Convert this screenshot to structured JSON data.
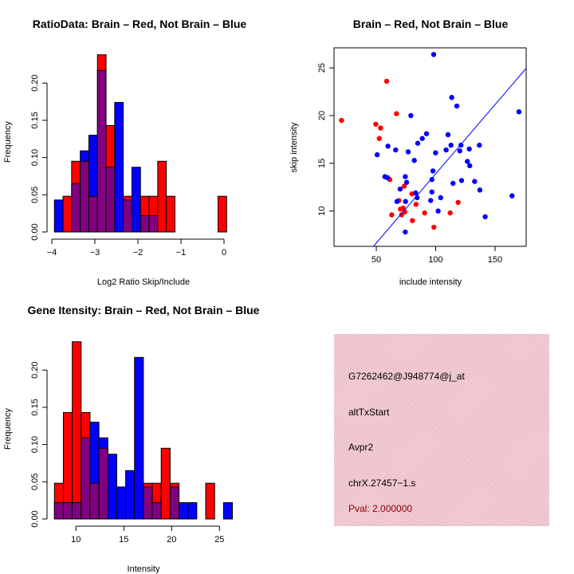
{
  "chart_data": [
    {
      "type": "bar",
      "subtype": "overlaid-histogram",
      "title": "RatioData: Brain – Red, Not Brain – Blue",
      "xlabel": "Log2 Ratio Skip/Include",
      "ylabel": "Frequency",
      "bin_start": -3.94,
      "bin_width": 0.2,
      "xticks": [
        -4,
        -3,
        -2,
        -1,
        0
      ],
      "xtick_labels": [
        "−4",
        "−3",
        "−2",
        "−1",
        "0"
      ],
      "yticks": [
        0,
        0.05,
        0.1,
        0.15,
        0.2
      ],
      "ytick_labels": [
        "0.00",
        "0.05",
        "0.10",
        "0.15",
        "0.20"
      ],
      "series": [
        {
          "name": "Brain",
          "color": "#ff0000",
          "values": [
            0,
            0.048,
            0.095,
            0.095,
            0.048,
            0.238,
            0.143,
            0,
            0.048,
            0,
            0.048,
            0.048,
            0.095,
            0.048,
            0,
            0,
            0,
            0,
            0,
            0.048
          ]
        },
        {
          "name": "Not Brain",
          "color": "#0000ff",
          "values": [
            0.043,
            0,
            0.065,
            0.109,
            0.13,
            0.217,
            0.087,
            0.174,
            0.043,
            0.087,
            0.022,
            0.022,
            0,
            0,
            0,
            0,
            0,
            0,
            0,
            0
          ]
        }
      ],
      "overlap_color": "#800080"
    },
    {
      "type": "scatter",
      "title": "Brain – Red, Not Brain – Blue",
      "xlabel": "include intensity",
      "ylabel": "skip intensity",
      "xlim": [
        14.4,
        176.2
      ],
      "ylim": [
        6.3,
        27.1
      ],
      "xticks": [
        50,
        100,
        150
      ],
      "yticks": [
        10,
        15,
        20,
        25
      ],
      "fit_line": {
        "intercept": -0.6,
        "slope": 0.145,
        "color": "#0000ff"
      },
      "series": [
        {
          "name": "Brain",
          "color": "#ff0000",
          "points": [
            [
              58.7,
              23.6
            ],
            [
              67.0,
              20.2
            ],
            [
              20.7,
              19.5
            ],
            [
              49.6,
              19.1
            ],
            [
              53.6,
              18.7
            ],
            [
              52.5,
              17.6
            ],
            [
              61.4,
              13.3
            ],
            [
              73.5,
              12.6
            ],
            [
              80.0,
              11.8
            ],
            [
              69.0,
              11.1
            ],
            [
              83.4,
              10.7
            ],
            [
              118.9,
              10.9
            ],
            [
              70.3,
              10.2
            ],
            [
              72.6,
              10.3
            ],
            [
              74.0,
              9.9
            ],
            [
              71.3,
              9.6
            ],
            [
              63.0,
              9.6
            ],
            [
              90.7,
              9.8
            ],
            [
              112.2,
              9.8
            ],
            [
              80.4,
              9.0
            ],
            [
              98.5,
              8.3
            ]
          ]
        },
        {
          "name": "Not Brain",
          "color": "#0000ff",
          "points": [
            [
              98.3,
              26.4
            ],
            [
              113.5,
              21.9
            ],
            [
              117.8,
              21.0
            ],
            [
              170.1,
              20.4
            ],
            [
              79.1,
              20.0
            ],
            [
              92.3,
              18.1
            ],
            [
              110.4,
              18.0
            ],
            [
              88.7,
              17.6
            ],
            [
              84.9,
              17.1
            ],
            [
              59.8,
              16.8
            ],
            [
              112.9,
              16.9
            ],
            [
              121.3,
              16.9
            ],
            [
              136.8,
              16.9
            ],
            [
              66.3,
              16.4
            ],
            [
              108.8,
              16.4
            ],
            [
              128.3,
              16.5
            ],
            [
              120.3,
              16.3
            ],
            [
              50.7,
              15.9
            ],
            [
              76.8,
              16.2
            ],
            [
              99.9,
              16.1
            ],
            [
              82.0,
              15.3
            ],
            [
              126.7,
              15.2
            ],
            [
              128.7,
              14.75
            ],
            [
              97.7,
              14.2
            ],
            [
              57.2,
              13.6
            ],
            [
              59.4,
              13.5
            ],
            [
              74.4,
              13.6
            ],
            [
              96.8,
              13.3
            ],
            [
              75.5,
              13.0
            ],
            [
              114.6,
              12.9
            ],
            [
              121.8,
              13.2
            ],
            [
              132.8,
              13.1
            ],
            [
              70.1,
              12.3
            ],
            [
              137.2,
              12.2
            ],
            [
              83.1,
              11.9
            ],
            [
              96.8,
              12.0
            ],
            [
              84.4,
              11.4
            ],
            [
              104.2,
              11.4
            ],
            [
              164.3,
              11.6
            ],
            [
              67.4,
              11.0
            ],
            [
              74.6,
              11.0
            ],
            [
              95.8,
              11.1
            ],
            [
              102.1,
              10.0
            ],
            [
              141.7,
              9.4
            ],
            [
              74.4,
              7.8
            ]
          ]
        }
      ]
    },
    {
      "type": "bar",
      "subtype": "overlaid-histogram",
      "title": "Gene Itensity: Brain – Red, Not Brain – Blue",
      "xlabel": "Intensity",
      "ylabel": "Frequency",
      "bin_start": 7.75,
      "bin_width": 0.93,
      "xticks": [
        10,
        15,
        20,
        25
      ],
      "xtick_labels": [
        "10",
        "15",
        "20",
        "25"
      ],
      "yticks": [
        0,
        0.05,
        0.1,
        0.15,
        0.2
      ],
      "ytick_labels": [
        "0.00",
        "0.05",
        "0.10",
        "0.15",
        "0.20"
      ],
      "series": [
        {
          "name": "Brain",
          "color": "#ff0000",
          "values": [
            0.048,
            0.143,
            0.238,
            0.143,
            0.048,
            0.095,
            0,
            0,
            0,
            0,
            0.048,
            0.048,
            0.095,
            0.048,
            0,
            0,
            0,
            0.048,
            0,
            0
          ]
        },
        {
          "name": "Not Brain",
          "color": "#0000ff",
          "values": [
            0.022,
            0.022,
            0.022,
            0.109,
            0.13,
            0.109,
            0.087,
            0.043,
            0.065,
            0.217,
            0.043,
            0.022,
            0,
            0.043,
            0.022,
            0.022,
            0,
            0,
            0,
            0.022
          ]
        }
      ],
      "overlap_color": "#800080"
    }
  ],
  "info": {
    "probe": "G7262462@J948774@j_at",
    "event": "altTxStart",
    "gene": "Avpr2",
    "location": "chrX.27457−1.s",
    "pval": "Pval: 2.000000",
    "pval_color": "#8b0000",
    "bg_color": "#f2c4cc"
  }
}
